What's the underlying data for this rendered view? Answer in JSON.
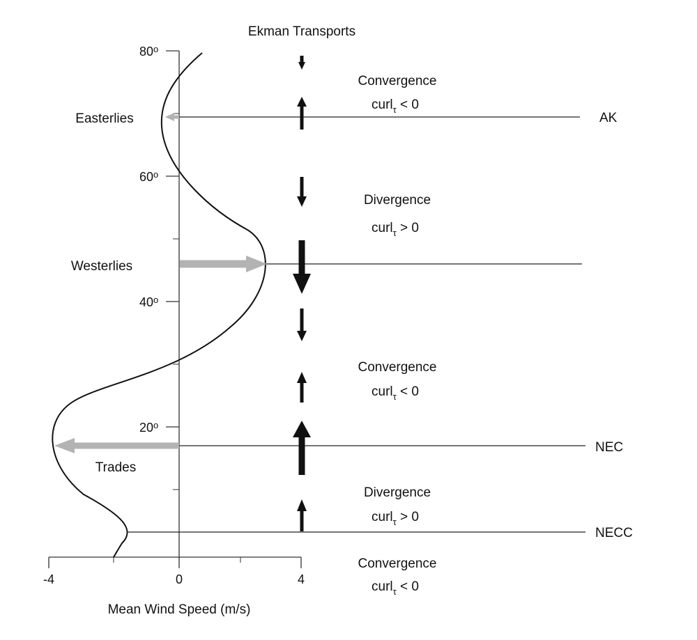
{
  "title": "Ekman Transports",
  "x_axis": {
    "label": "Mean Wind Speed (m/s)",
    "ticks": [
      "-4",
      "0",
      "4"
    ]
  },
  "y_axis": {
    "ticks": [
      "80",
      "60",
      "40",
      "20"
    ],
    "degree_suffix": "o"
  },
  "wind_labels": {
    "easterlies": "Easterlies",
    "westerlies": "Westerlies",
    "trades": "Trades"
  },
  "currents": {
    "ak": "AK",
    "nec": "NEC",
    "necc": "NECC"
  },
  "zones": [
    {
      "title": "Convergence",
      "curl_base": "curl",
      "curl_sub": "τ",
      "curl_rel": " < 0"
    },
    {
      "title": "Divergence",
      "curl_base": "curl",
      "curl_sub": "τ",
      "curl_rel": " > 0"
    },
    {
      "title": "Convergence",
      "curl_base": "curl",
      "curl_sub": "τ",
      "curl_rel": " < 0"
    },
    {
      "title": "Divergence",
      "curl_base": "curl",
      "curl_sub": "τ",
      "curl_rel": " > 0"
    },
    {
      "title": "Convergence",
      "curl_base": "curl",
      "curl_sub": "τ",
      "curl_rel": " < 0"
    }
  ],
  "colors": {
    "line": "#111111",
    "wind_arrow": "#b3b3b3",
    "ekman_arrow": "#111111"
  }
}
